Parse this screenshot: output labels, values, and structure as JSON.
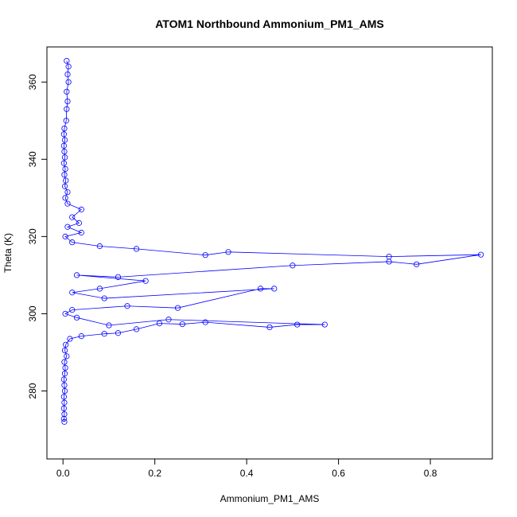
{
  "chart_data": {
    "type": "line",
    "title": "ATOM1 Northbound Ammonium_PM1_AMS",
    "xlabel": "Ammonium_PM1_AMS",
    "ylabel": "Theta (K)",
    "xlim": [
      -0.035,
      0.935
    ],
    "ylim": [
      262.4,
      369.1
    ],
    "x_ticks": [
      0.0,
      0.2,
      0.4,
      0.6,
      0.8
    ],
    "x_tick_labels": [
      "0.0",
      "0.2",
      "0.4",
      "0.6",
      "0.8"
    ],
    "y_ticks": [
      280,
      300,
      320,
      340,
      360
    ],
    "y_tick_labels": [
      "280",
      "300",
      "320",
      "340",
      "360"
    ],
    "grid": false,
    "series": [
      {
        "color": "#0000ff",
        "marker": "open-circle",
        "points": [
          [
            0.003,
            272.0
          ],
          [
            0.002,
            272.8
          ],
          [
            0.003,
            274.0
          ],
          [
            0.002,
            275.5
          ],
          [
            0.003,
            277.0
          ],
          [
            0.002,
            278.5
          ],
          [
            0.004,
            280.0
          ],
          [
            0.003,
            281.5
          ],
          [
            0.002,
            283.0
          ],
          [
            0.004,
            284.5
          ],
          [
            0.005,
            286.0
          ],
          [
            0.003,
            287.5
          ],
          [
            0.008,
            289.0
          ],
          [
            0.004,
            290.5
          ],
          [
            0.006,
            292.0
          ],
          [
            0.015,
            293.5
          ],
          [
            0.04,
            294.2
          ],
          [
            0.09,
            294.8
          ],
          [
            0.12,
            295.0
          ],
          [
            0.16,
            296.0
          ],
          [
            0.21,
            297.5
          ],
          [
            0.26,
            297.3
          ],
          [
            0.31,
            297.8
          ],
          [
            0.45,
            296.5
          ],
          [
            0.51,
            297.2
          ],
          [
            0.57,
            297.2
          ],
          [
            0.23,
            298.5
          ],
          [
            0.1,
            297.0
          ],
          [
            0.03,
            299.0
          ],
          [
            0.005,
            300.0
          ],
          [
            0.02,
            301.0
          ],
          [
            0.14,
            302.0
          ],
          [
            0.25,
            301.5
          ],
          [
            0.43,
            306.5
          ],
          [
            0.46,
            306.5
          ],
          [
            0.09,
            304.0
          ],
          [
            0.02,
            305.5
          ],
          [
            0.08,
            306.5
          ],
          [
            0.18,
            308.5
          ],
          [
            0.03,
            310.0
          ],
          [
            0.12,
            309.5
          ],
          [
            0.5,
            312.5
          ],
          [
            0.71,
            313.5
          ],
          [
            0.77,
            312.8
          ],
          [
            0.91,
            315.3
          ],
          [
            0.71,
            314.8
          ],
          [
            0.36,
            316.0
          ],
          [
            0.31,
            315.2
          ],
          [
            0.16,
            316.8
          ],
          [
            0.08,
            317.5
          ],
          [
            0.02,
            318.5
          ],
          [
            0.005,
            320.0
          ],
          [
            0.04,
            321.0
          ],
          [
            0.01,
            322.5
          ],
          [
            0.035,
            323.5
          ],
          [
            0.02,
            325.0
          ],
          [
            0.04,
            327.0
          ],
          [
            0.01,
            328.5
          ],
          [
            0.005,
            330.0
          ],
          [
            0.01,
            331.5
          ],
          [
            0.004,
            333.0
          ],
          [
            0.006,
            334.5
          ],
          [
            0.003,
            336.0
          ],
          [
            0.005,
            337.5
          ],
          [
            0.002,
            339.0
          ],
          [
            0.004,
            340.5
          ],
          [
            0.003,
            342.0
          ],
          [
            0.002,
            343.5
          ],
          [
            0.004,
            345.0
          ],
          [
            0.002,
            346.5
          ],
          [
            0.003,
            348.0
          ],
          [
            0.007,
            350.0
          ],
          [
            0.008,
            353.0
          ],
          [
            0.01,
            355.0
          ],
          [
            0.008,
            357.5
          ],
          [
            0.012,
            360.0
          ],
          [
            0.01,
            362.0
          ],
          [
            0.012,
            364.0
          ],
          [
            0.008,
            365.5
          ]
        ]
      }
    ]
  }
}
